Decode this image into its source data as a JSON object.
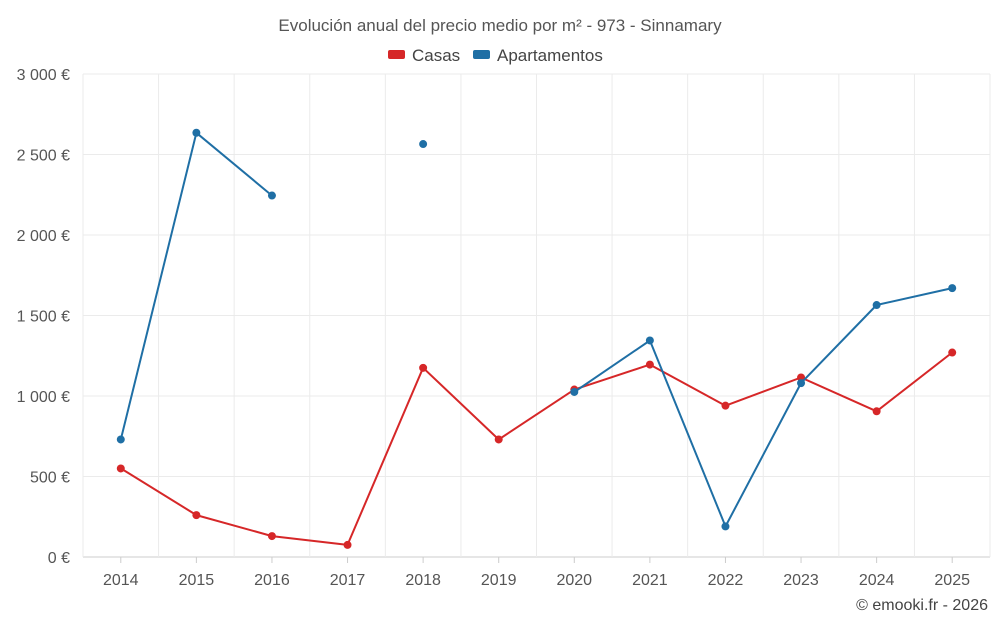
{
  "chart_data": {
    "type": "line",
    "title": "Evolución anual del precio medio por m² - 973 - Sinnamary",
    "categories": [
      "2014",
      "2015",
      "2016",
      "2017",
      "2018",
      "2019",
      "2020",
      "2021",
      "2022",
      "2023",
      "2024",
      "2025"
    ],
    "ylim": [
      0,
      3000
    ],
    "yticks": [
      0,
      500,
      1000,
      1500,
      2000,
      2500,
      3000
    ],
    "ytick_labels": [
      "0 €",
      "500 €",
      "1 000 €",
      "1 500 €",
      "2 000 €",
      "2 500 €",
      "3 000 €"
    ],
    "legend_position": "top-center",
    "grid": true,
    "series": [
      {
        "name": "Casas",
        "color": "#d62728",
        "values": [
          550,
          260,
          130,
          75,
          1175,
          730,
          1040,
          1195,
          940,
          1115,
          905,
          1270
        ]
      },
      {
        "name": "Apartamentos",
        "color": "#1f6fa5",
        "values": [
          730,
          2635,
          2245,
          null,
          2565,
          null,
          1025,
          1345,
          190,
          1080,
          1565,
          1670
        ]
      }
    ]
  },
  "credit": "© emooki.fr - 2026"
}
